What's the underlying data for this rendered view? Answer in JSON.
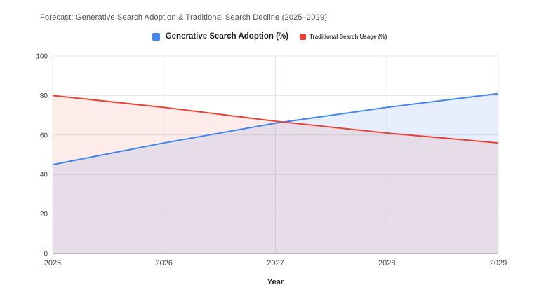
{
  "chart_data": {
    "type": "area",
    "title": "Forecast: Generative Search Adoption & Traditional Search Decline (2025–2029)",
    "xlabel": "Year",
    "x": [
      2025,
      2026,
      2027,
      2028,
      2029
    ],
    "series": [
      {
        "name": "Generative Search Adoption (%)",
        "color": "#4285F4",
        "fill": "rgba(66,133,244,0.13)",
        "values": [
          45,
          56,
          66,
          74,
          81
        ]
      },
      {
        "name": "Traditional Search Usage (%)",
        "color": "#EA4335",
        "fill": "rgba(234,67,53,0.10)",
        "values": [
          80,
          74,
          67,
          61,
          56
        ]
      }
    ],
    "ylim": [
      0,
      100
    ],
    "yticks": [
      0,
      20,
      40,
      60,
      80,
      100
    ],
    "grid": true,
    "grid_color": "#e6e6e6",
    "axis_line_color": "#757575",
    "legend_position": "top-center"
  }
}
